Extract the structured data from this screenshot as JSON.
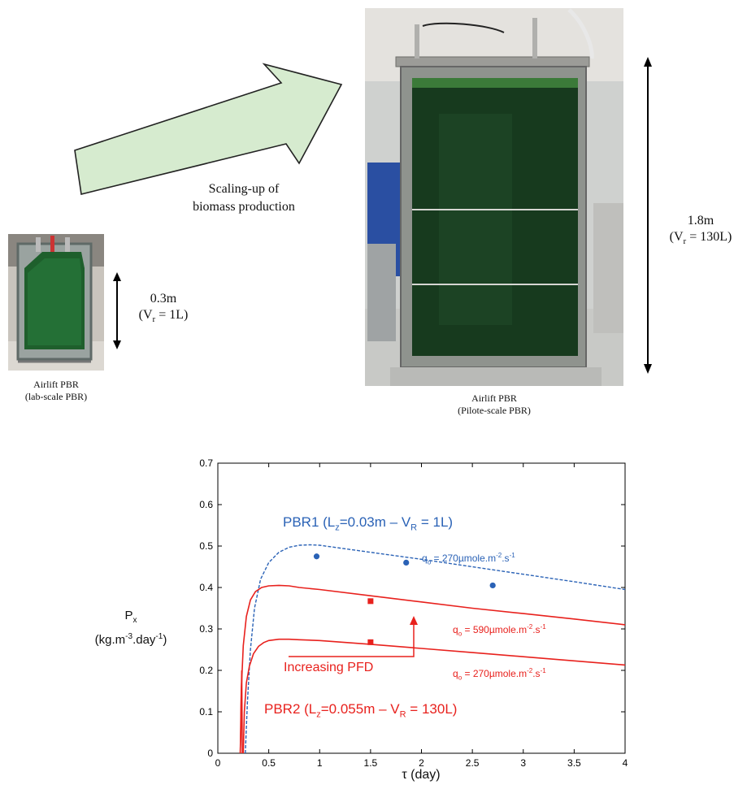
{
  "top": {
    "scaling_label_line1": "Scaling-up of",
    "scaling_label_line2": "biomass production",
    "lab": {
      "height": "0.3m",
      "volume_prefix": "(V",
      "volume_sub": "r",
      "volume_suffix": " = 1L)",
      "caption_line1": "Airlift PBR",
      "caption_line2": "(lab-scale PBR)"
    },
    "pilot": {
      "height": "1.8m",
      "volume_prefix": "(V",
      "volume_sub": "r",
      "volume_suffix": " = 130L)",
      "caption_line1": "Airlift PBR",
      "caption_line2": "(Pilote-scale PBR)"
    },
    "colors": {
      "arrow_fill": "#d6ebcf",
      "arrow_stroke": "#222222",
      "culture_green": "#1f5a2a"
    }
  },
  "chart_data": {
    "type": "line",
    "xlabel": "τ (day)",
    "ylabel_line1": "P",
    "ylabel_sub": "x",
    "ylabel_line2_prefix": "(kg.m",
    "ylabel_sup1": "-3",
    "ylabel_mid": ".day",
    "ylabel_sup2": "-1",
    "ylabel_end": ")",
    "xlim": [
      0,
      4
    ],
    "ylim": [
      0,
      0.7
    ],
    "xticks": [
      0,
      0.5,
      1,
      1.5,
      2,
      2.5,
      3,
      3.5,
      4
    ],
    "xtick_labels": [
      "0",
      "0.5",
      "1",
      "1.5",
      "2",
      "2.5",
      "3",
      "3.5",
      "4"
    ],
    "yticks": [
      0,
      0.1,
      0.2,
      0.3,
      0.4,
      0.5,
      0.6,
      0.7
    ],
    "ytick_labels": [
      "0",
      "0.1",
      "0.2",
      "0.3",
      "0.4",
      "0.5",
      "0.6",
      "0.7"
    ],
    "series": [
      {
        "color": "#2a62b6",
        "style": "dashed",
        "x": [
          0.27,
          0.29,
          0.32,
          0.36,
          0.42,
          0.5,
          0.6,
          0.7,
          0.8,
          0.9,
          1.0,
          1.2,
          1.5,
          2.0,
          2.5,
          3.0,
          3.5,
          4.0
        ],
        "y": [
          0.0,
          0.12,
          0.25,
          0.35,
          0.42,
          0.46,
          0.485,
          0.497,
          0.502,
          0.503,
          0.502,
          0.495,
          0.485,
          0.468,
          0.45,
          0.432,
          0.414,
          0.395
        ]
      },
      {
        "color": "#e8211d",
        "style": "solid",
        "x": [
          0.22,
          0.23,
          0.25,
          0.28,
          0.32,
          0.37,
          0.43,
          0.5,
          0.6,
          0.7,
          0.8,
          1.0,
          1.5,
          2.0,
          2.5,
          3.0,
          3.5,
          4.0
        ],
        "y": [
          0.0,
          0.15,
          0.26,
          0.33,
          0.37,
          0.39,
          0.4,
          0.404,
          0.405,
          0.404,
          0.4,
          0.395,
          0.38,
          0.365,
          0.35,
          0.337,
          0.324,
          0.31
        ]
      },
      {
        "color": "#e8211d",
        "style": "solid",
        "x": [
          0.25,
          0.26,
          0.28,
          0.31,
          0.35,
          0.4,
          0.45,
          0.5,
          0.6,
          0.7,
          0.8,
          1.0,
          1.5,
          2.0,
          2.5,
          3.0,
          3.5,
          4.0
        ],
        "y": [
          0.0,
          0.1,
          0.17,
          0.21,
          0.24,
          0.258,
          0.267,
          0.272,
          0.275,
          0.275,
          0.274,
          0.272,
          0.263,
          0.253,
          0.243,
          0.233,
          0.223,
          0.213
        ]
      },
      {
        "color": "#e8211d",
        "style": "solid",
        "x": [
          0.22,
          0.225,
          0.23,
          0.235,
          0.24
        ],
        "y": [
          0.0,
          0.05,
          0.14,
          0.2,
          0.0
        ]
      }
    ],
    "points": [
      {
        "series": "PBR1",
        "shape": "circle",
        "color": "#2a62b6",
        "x": [
          0.97,
          1.85,
          2.7
        ],
        "y": [
          0.475,
          0.46,
          0.405
        ]
      },
      {
        "series": "PBR2",
        "shape": "square",
        "color": "#e8211d",
        "x": [
          1.5,
          1.5
        ],
        "y": [
          0.367,
          0.268
        ]
      }
    ],
    "annotations": {
      "pbr1": {
        "text_prefix": "PBR1 (L",
        "sub1": "z",
        "text_mid": "=0.03m – V",
        "sub2": "R",
        "text_suffix": " = 1L)"
      },
      "pbr2": {
        "text_prefix": "PBR2 (L",
        "sub1": "z",
        "text_mid": "=0.055m – V",
        "sub2": "R",
        "text_suffix": " = 130L)"
      },
      "q_blue": {
        "prefix": "q",
        "sub": "o",
        "mid": " = 270µmole.m",
        "sup1": "-2",
        "mid2": ".s",
        "sup2": "-1"
      },
      "q_red_high": {
        "prefix": "q",
        "sub": "o",
        "mid": " = 590µmole.m",
        "sup1": "-2",
        "mid2": ".s",
        "sup2": "-1"
      },
      "q_red_low": {
        "prefix": "q",
        "sub": "o",
        "mid": " = 270µmole.m",
        "sup1": "-2",
        "mid2": ".s",
        "sup2": "-1"
      },
      "increasing": "Increasing PFD"
    },
    "colors": {
      "blue": "#2a62b6",
      "red": "#e8211d"
    }
  }
}
